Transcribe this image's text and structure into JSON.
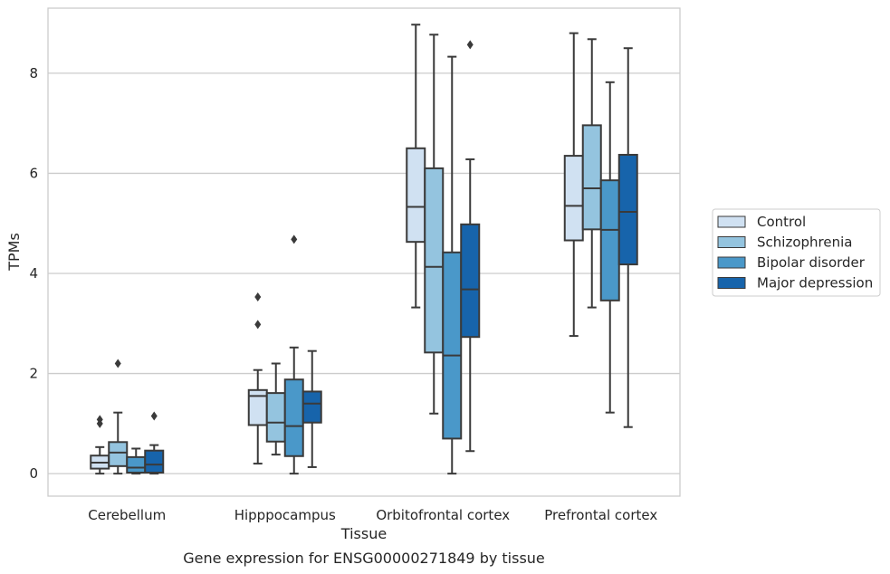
{
  "chart_data": {
    "type": "boxplot",
    "xlabel": "Tissue",
    "ylabel": "TPMs",
    "caption": "Gene expression for ENSG00000271849 by tissue",
    "ylim": [
      -0.45,
      9.3
    ],
    "yticks": [
      0,
      2,
      4,
      6,
      8
    ],
    "grid": "horizontal",
    "legend_position": "right",
    "categories": [
      "Cerebellum",
      "Hipppocampus",
      "Orbitofrontal cortex",
      "Prefrontal cortex"
    ],
    "series": [
      {
        "name": "Control",
        "color": "#d0e1f2",
        "boxes": [
          {
            "whislo": 0.0,
            "q1": 0.1,
            "med": 0.22,
            "q3": 0.36,
            "whishi": 0.53,
            "fliers": [
              1.0,
              1.08
            ]
          },
          {
            "whislo": 0.2,
            "q1": 0.97,
            "med": 1.55,
            "q3": 1.67,
            "whishi": 2.07,
            "fliers": [
              2.98,
              3.53
            ]
          },
          {
            "whislo": 3.32,
            "q1": 4.63,
            "med": 5.33,
            "q3": 6.5,
            "whishi": 8.97,
            "fliers": []
          },
          {
            "whislo": 2.75,
            "q1": 4.66,
            "med": 5.35,
            "q3": 6.35,
            "whishi": 8.8,
            "fliers": []
          }
        ]
      },
      {
        "name": "Schizophrenia",
        "color": "#94c4df",
        "boxes": [
          {
            "whislo": 0.0,
            "q1": 0.15,
            "med": 0.42,
            "q3": 0.63,
            "whishi": 1.22,
            "fliers": [
              2.2
            ]
          },
          {
            "whislo": 0.38,
            "q1": 0.64,
            "med": 1.02,
            "q3": 1.61,
            "whishi": 2.2,
            "fliers": []
          },
          {
            "whislo": 1.2,
            "q1": 2.42,
            "med": 4.13,
            "q3": 6.1,
            "whishi": 8.77,
            "fliers": []
          },
          {
            "whislo": 3.32,
            "q1": 4.88,
            "med": 5.7,
            "q3": 6.96,
            "whishi": 8.68,
            "fliers": []
          }
        ]
      },
      {
        "name": "Bipolar disorder",
        "color": "#4a98c9",
        "boxes": [
          {
            "whislo": 0.0,
            "q1": 0.02,
            "med": 0.12,
            "q3": 0.33,
            "whishi": 0.5,
            "fliers": []
          },
          {
            "whislo": 0.0,
            "q1": 0.35,
            "med": 0.95,
            "q3": 1.88,
            "whishi": 2.52,
            "fliers": [
              4.68
            ]
          },
          {
            "whislo": 0.0,
            "q1": 0.7,
            "med": 2.36,
            "q3": 4.42,
            "whishi": 8.33,
            "fliers": []
          },
          {
            "whislo": 1.22,
            "q1": 3.46,
            "med": 4.87,
            "q3": 5.86,
            "whishi": 7.82,
            "fliers": []
          }
        ]
      },
      {
        "name": "Major depression",
        "color": "#1764ab",
        "boxes": [
          {
            "whislo": 0.0,
            "q1": 0.02,
            "med": 0.18,
            "q3": 0.46,
            "whishi": 0.57,
            "fliers": [
              1.15
            ]
          },
          {
            "whislo": 0.13,
            "q1": 1.02,
            "med": 1.4,
            "q3": 1.64,
            "whishi": 2.45,
            "fliers": []
          },
          {
            "whislo": 0.45,
            "q1": 2.73,
            "med": 3.68,
            "q3": 4.98,
            "whishi": 6.28,
            "fliers": [
              8.57
            ]
          },
          {
            "whislo": 0.93,
            "q1": 4.18,
            "med": 5.23,
            "q3": 6.37,
            "whishi": 8.5,
            "fliers": []
          }
        ]
      }
    ]
  }
}
